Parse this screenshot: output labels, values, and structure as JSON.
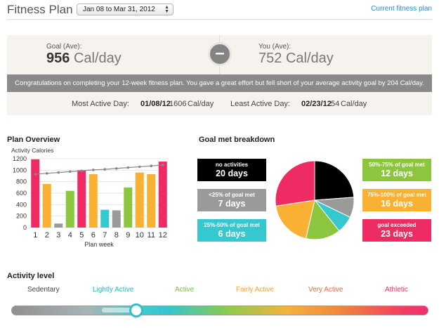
{
  "header": {
    "title": "Fitness Plan",
    "date_range": "Jan 08 to Mar 31, 2012",
    "current_link": "Current fitness plan"
  },
  "summary": {
    "goal_label": "Goal (Ave):",
    "goal_value": "956",
    "goal_unit": "Cal/day",
    "minus": "–",
    "you_label": "You (Ave):",
    "you_value": "752",
    "you_unit": "Cal/day",
    "message": "Congratulations on completing your 12-week fitness plan. You gave a great effort but fell short of your average activity goal by 204 Cal/day.",
    "most_active_label": "Most Active Day:",
    "most_active_date": "01/08/12",
    "most_active_value": "1606",
    "most_active_unit": "Cal/day",
    "least_active_label": "Least Active Day:",
    "least_active_date": "02/23/12",
    "least_active_value": "54",
    "least_active_unit": "Cal/day"
  },
  "overview": {
    "title": "Plan Overview"
  },
  "breakdown": {
    "title": "Goal met breakdown",
    "items": [
      {
        "label": "no activities",
        "value": "20 days",
        "color": "#000000"
      },
      {
        "label": "<25% of goal met",
        "value": "7 days",
        "color": "#9a9a9a"
      },
      {
        "label": "25%-50% of goal met",
        "value": "6 days",
        "color": "#35c9cf"
      },
      {
        "label": "50%-75% of goal met",
        "value": "12 days",
        "color": "#8cc63f"
      },
      {
        "label": "75%-100% of goal met",
        "value": "16 days",
        "color": "#f8b133"
      },
      {
        "label": "goal exceeded",
        "value": "23 days",
        "color": "#ee2b62"
      }
    ]
  },
  "activity": {
    "title": "Activity level",
    "levels": [
      {
        "label": "Sedentary",
        "color": "#444444"
      },
      {
        "label": "Lightly Active",
        "color": "#2bb6c4"
      },
      {
        "label": "Active",
        "color": "#7cc04a"
      },
      {
        "label": "Fairly Active",
        "color": "#f1a52d"
      },
      {
        "label": "Very Active",
        "color": "#f26a3a"
      },
      {
        "label": "Athletic",
        "color": "#ee2f66"
      }
    ],
    "slider_level": 0.3
  },
  "chart_data": [
    {
      "type": "bar",
      "ylabel": "Activity Calories",
      "xlabel": "Plan week",
      "categories": [
        "1",
        "2",
        "3",
        "4",
        "5",
        "6",
        "7",
        "8",
        "9",
        "10",
        "11",
        "12"
      ],
      "ylim": [
        0,
        1200
      ],
      "yticks": [
        0,
        200,
        400,
        600,
        800,
        1000,
        1200
      ],
      "series": [
        {
          "type": "bar",
          "values": [
            1190,
            760,
            70,
            640,
            1000,
            930,
            310,
            300,
            700,
            960,
            930,
            1150
          ],
          "colors": [
            "#ee2b62",
            "#f8b133",
            "#9a9a9a",
            "#8cc63f",
            "#ee2b62",
            "#f8b133",
            "#35c9cf",
            "#9a9a9a",
            "#8cc63f",
            "#f8b133",
            "#f8b133",
            "#ee2b62"
          ]
        },
        {
          "type": "line",
          "values": [
            930,
            945,
            960,
            975,
            990,
            1005,
            1015,
            1030,
            1045,
            1060,
            1075,
            1090
          ],
          "color": "#888888"
        }
      ],
      "grid": true
    },
    {
      "type": "pie",
      "categories": [
        "no activities",
        "<25% of goal met",
        "25%-50% of goal met",
        "50%-75% of goal met",
        "75%-100% of goal met",
        "goal exceeded"
      ],
      "values": [
        20,
        7,
        6,
        12,
        16,
        23
      ],
      "colors": [
        "#000000",
        "#9a9a9a",
        "#35c9cf",
        "#8cc63f",
        "#f8b133",
        "#ee2b62"
      ]
    }
  ]
}
